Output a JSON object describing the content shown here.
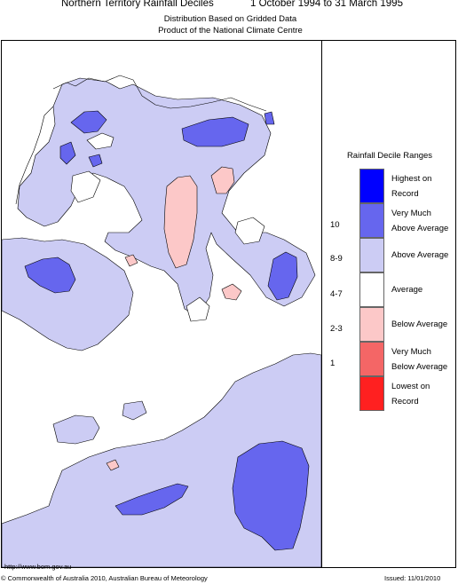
{
  "title": {
    "region": "Northern Territory Rainfall Deciles",
    "period": "1 October 1994 to 31 March 1995"
  },
  "subtitle1": "Distribution Based on Gridded Data",
  "subtitle2": "Product of the National Climate Centre",
  "legend": {
    "title": "Rainfall Decile Ranges",
    "entries": [
      {
        "range": "",
        "label_line1": "Highest on",
        "label_line2": "Record",
        "color": "#0000ff"
      },
      {
        "range": "10",
        "label_line1": "Very Much",
        "label_line2": "Above Average",
        "color": "#6666ee"
      },
      {
        "range": "8-9",
        "label_line1": "Above Average",
        "label_line2": "",
        "color": "#ccccf4"
      },
      {
        "range": "4-7",
        "label_line1": "Average",
        "label_line2": "",
        "color": "#ffffff"
      },
      {
        "range": "2-3",
        "label_line1": "Below Average",
        "label_line2": "",
        "color": "#fcc8c8"
      },
      {
        "range": "1",
        "label_line1": "Very Much",
        "label_line2": "Below Average",
        "color": "#f46666"
      },
      {
        "range": "",
        "label_line1": "Lowest on",
        "label_line2": "Record",
        "color": "#ff2020"
      }
    ]
  },
  "footer": {
    "url": "http://www.bom.gov.au",
    "copyright": "© Commonwealth of Australia 2010, Australian Bureau of Meteorology",
    "issued": "Issued: 11/01/2010"
  }
}
